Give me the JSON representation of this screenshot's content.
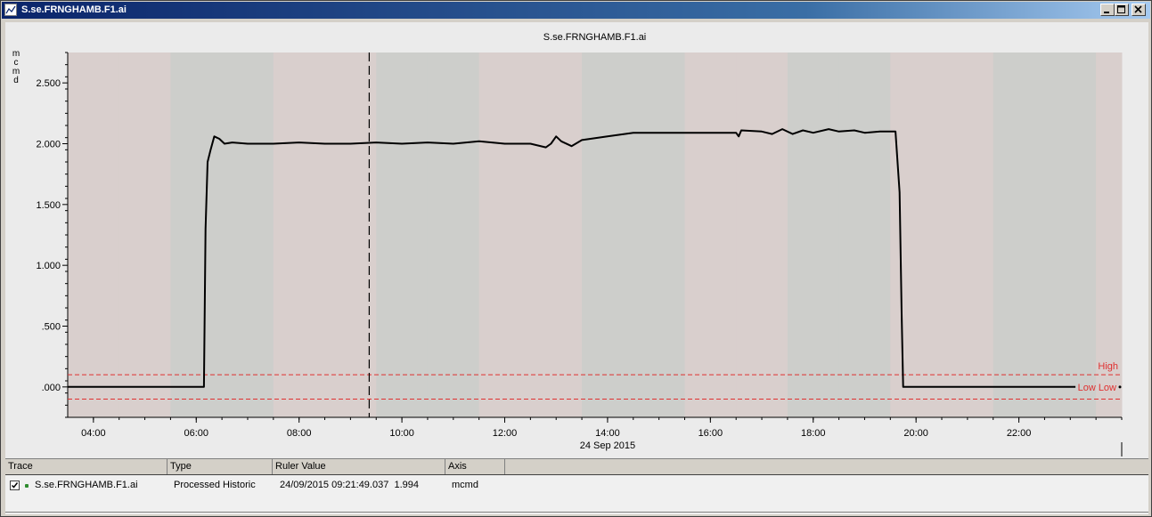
{
  "window": {
    "title": "S.se.FRNGHAMB.F1.ai",
    "controls": [
      "minimize",
      "maximize",
      "close"
    ]
  },
  "chart_data": {
    "type": "line",
    "title": "S.se.FRNGHAMB.F1.ai",
    "ylabel": "m\nc\nm\nd",
    "ylabel_letters": [
      "m",
      "c",
      "m",
      "d"
    ],
    "ylim": [
      -0.25,
      2.75
    ],
    "yticks": [
      0,
      0.5,
      1.0,
      1.5,
      2.0,
      2.5
    ],
    "ytick_labels": [
      ".000",
      ".500",
      "1.000",
      "1.500",
      "2.000",
      "2.500"
    ],
    "xlim_hours": [
      3.5,
      24.0
    ],
    "xticks_hours": [
      4,
      6,
      8,
      10,
      12,
      14,
      16,
      18,
      20,
      22
    ],
    "xtick_labels": [
      "04:00",
      "06:00",
      "08:00",
      "10:00",
      "12:00",
      "14:00",
      "16:00",
      "18:00",
      "20:00",
      "22:00"
    ],
    "date_label": "24 Sep 2015",
    "grid": false,
    "background_bands": [
      "#d9cfcd",
      "#cdcecb"
    ],
    "ruler_time_hours": 9.364,
    "limits": [
      {
        "label": "High",
        "value": 0.1,
        "color": "#e03030"
      },
      {
        "label": "Low Low",
        "value": -0.1,
        "color": "#e03030"
      }
    ],
    "series": [
      {
        "name": "S.se.FRNGHAMB.F1.ai",
        "color": "#000000",
        "x": [
          3.5,
          6.15,
          6.18,
          6.22,
          6.28,
          6.35,
          6.45,
          6.55,
          6.7,
          7.0,
          7.5,
          8.0,
          8.5,
          9.0,
          9.5,
          10.0,
          10.5,
          11.0,
          11.5,
          12.0,
          12.5,
          12.8,
          12.9,
          13.0,
          13.1,
          13.3,
          13.5,
          14.0,
          14.5,
          15.0,
          15.5,
          16.0,
          16.5,
          16.55,
          16.6,
          17.0,
          17.2,
          17.4,
          17.6,
          17.8,
          18.0,
          18.3,
          18.5,
          18.8,
          19.0,
          19.3,
          19.6,
          19.68,
          19.72,
          19.75,
          23.1
        ],
        "y": [
          0.0,
          0.0,
          1.3,
          1.85,
          1.95,
          2.06,
          2.04,
          2.0,
          2.01,
          2.0,
          2.0,
          2.01,
          2.0,
          2.0,
          2.01,
          2.0,
          2.01,
          2.0,
          2.02,
          2.0,
          2.0,
          1.97,
          2.0,
          2.06,
          2.02,
          1.98,
          2.03,
          2.06,
          2.09,
          2.09,
          2.09,
          2.09,
          2.09,
          2.06,
          2.11,
          2.1,
          2.08,
          2.12,
          2.08,
          2.11,
          2.09,
          2.12,
          2.1,
          2.11,
          2.09,
          2.1,
          2.1,
          1.6,
          0.6,
          0.0,
          0.0
        ]
      }
    ]
  },
  "trace_table": {
    "headers": [
      "Trace",
      "Type",
      "Ruler Value",
      "Axis"
    ],
    "rows": [
      {
        "checked": true,
        "trace": "S.se.FRNGHAMB.F1.ai",
        "type": "Processed Historic",
        "ruler_value": "24/09/2015 09:21:49.037  1.994",
        "axis": "mcmd",
        "marker_color": "#2e8b2e"
      }
    ]
  }
}
